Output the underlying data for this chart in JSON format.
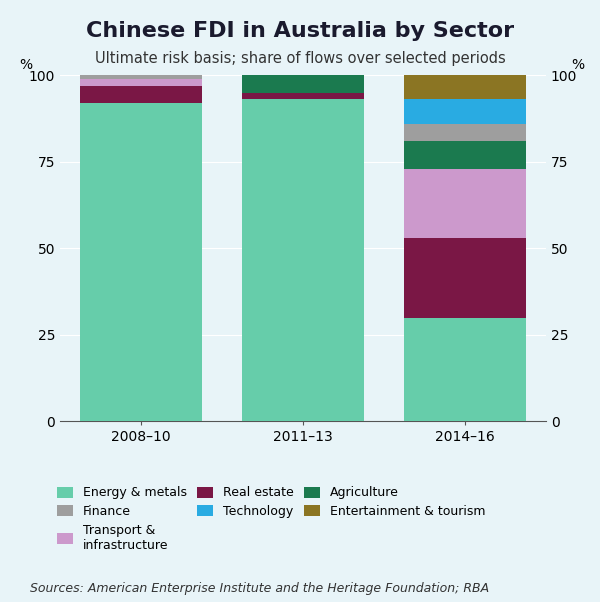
{
  "title": "Chinese FDI in Australia by Sector",
  "subtitle": "Ultimate risk basis; share of flows over selected periods",
  "source": "Sources: American Enterprise Institute and the Heritage Foundation; RBA",
  "categories": [
    "2008–10",
    "2011–13",
    "2014–16"
  ],
  "data": {
    "Energy & metals": [
      92,
      93,
      30
    ],
    "Real estate": [
      5,
      2,
      23
    ],
    "Transport & infrastructure": [
      2,
      0,
      20
    ],
    "Agriculture": [
      0,
      5,
      8
    ],
    "Finance": [
      1,
      0,
      5
    ],
    "Technology": [
      0,
      0,
      7
    ],
    "Entertainment & tourism": [
      0,
      0,
      7
    ]
  },
  "stack_order": [
    "Energy & metals",
    "Real estate",
    "Transport & infrastructure",
    "Agriculture",
    "Finance",
    "Technology",
    "Entertainment & tourism"
  ],
  "colors": {
    "Energy & metals": "#66CDAA",
    "Real estate": "#7A1745",
    "Transport & infrastructure": "#CC99CC",
    "Agriculture": "#1B7A4F",
    "Finance": "#9E9E9E",
    "Technology": "#29ABE2",
    "Entertainment & tourism": "#8B7523"
  },
  "legend_col1": [
    "Energy & metals",
    "Real estate",
    "Agriculture"
  ],
  "legend_col2": [
    "Finance",
    "Technology",
    "Entertainment & tourism"
  ],
  "legend_col3": [
    "Transport & infrastructure"
  ],
  "legend_col3_label": "Transport &\ninfrastructure",
  "ylim": [
    0,
    100
  ],
  "yticks": [
    0,
    25,
    50,
    75,
    100
  ],
  "background_color": "#E8F4F8",
  "bar_width": 0.75,
  "title_fontsize": 16,
  "subtitle_fontsize": 10.5,
  "tick_fontsize": 10,
  "source_fontsize": 9
}
